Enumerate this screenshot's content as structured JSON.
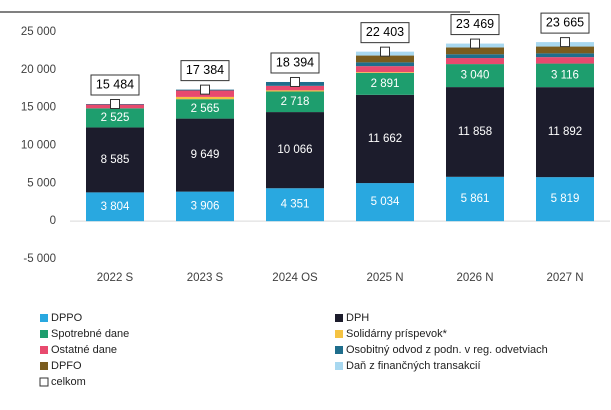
{
  "chart_data": {
    "type": "stacked_bar",
    "categories": [
      "2022 S",
      "2023 S",
      "2024 OS",
      "2025 N",
      "2026 N",
      "2027 N"
    ],
    "series": [
      {
        "name": "DPPO",
        "color": "#29a8e0",
        "values": [
          3804,
          3906,
          4351,
          5034,
          5861,
          5819
        ],
        "value_labels": [
          "3 804",
          "3 906",
          "4 351",
          "5 034",
          "5 861",
          "5 819"
        ]
      },
      {
        "name": "DPH",
        "color": "#1c1c2c",
        "values": [
          8585,
          9649,
          10066,
          11662,
          11858,
          11892
        ],
        "value_labels": [
          "8 585",
          "9 649",
          "10 066",
          "11 662",
          "11 858",
          "11 892"
        ]
      },
      {
        "name": "Spotrebné dane",
        "color": "#1e9e6e",
        "values": [
          2525,
          2565,
          2718,
          2891,
          3040,
          3116
        ],
        "value_labels": [
          "2 525",
          "2 565",
          "2 718",
          "2 891",
          "3 040",
          "3 116"
        ]
      },
      {
        "name": "Solidárny príspevok*",
        "color": "#f5c342",
        "values": [
          0,
          300,
          150,
          100,
          0,
          0
        ]
      },
      {
        "name": "Ostatné dane",
        "color": "#e84a6e",
        "values": [
          500,
          850,
          600,
          800,
          800,
          850
        ]
      },
      {
        "name": "Osobitný odvod z podn. v reg. odvetviach",
        "color": "#1f6e8c",
        "values": [
          70,
          114,
          509,
          500,
          500,
          500
        ]
      },
      {
        "name": "DPFO",
        "color": "#7a5c1e",
        "values": [
          0,
          0,
          0,
          900,
          900,
          900
        ]
      },
      {
        "name": "Daň z finančných transakcií",
        "color": "#a8d8f0",
        "values": [
          0,
          0,
          0,
          516,
          510,
          588
        ]
      }
    ],
    "total": {
      "name": "celkom",
      "values": [
        15484,
        17384,
        18394,
        22403,
        23469,
        23665
      ],
      "value_labels": [
        "15 484",
        "17 384",
        "18 394",
        "22 403",
        "23 469",
        "23 665"
      ]
    },
    "ylim": [
      -5000,
      25000
    ],
    "yticks": [
      {
        "value": -5000,
        "label": "-5 000"
      },
      0,
      {
        "value": 5000,
        "label": "5 000"
      },
      {
        "value": 10000,
        "label": "10 000"
      },
      {
        "value": 15000,
        "label": "15 000"
      },
      {
        "value": 20000,
        "label": "20 000"
      },
      {
        "value": 25000,
        "label": "25 000"
      }
    ],
    "legend": "bottom"
  }
}
